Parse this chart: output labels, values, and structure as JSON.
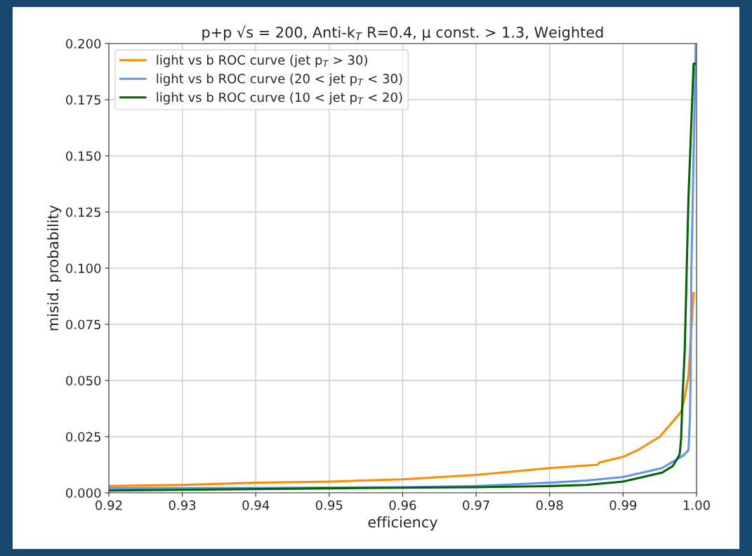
{
  "chart_data": {
    "type": "line",
    "title": "p+p √s = 200, Anti-k$_{T}$ R=0.4, μ const. > 1.3, Weighted",
    "xlabel": "efficiency",
    "ylabel": "misid. probability",
    "xlim": [
      0.92,
      1.0
    ],
    "xticks": [
      {
        "value": 0.92,
        "label": "0.92"
      },
      {
        "value": 0.93,
        "label": "0.93"
      },
      {
        "value": 0.94,
        "label": "0.94"
      },
      {
        "value": 0.95,
        "label": "0.95"
      },
      {
        "value": 0.96,
        "label": "0.96"
      },
      {
        "value": 0.97,
        "label": "0.97"
      },
      {
        "value": 0.98,
        "label": "0.98"
      },
      {
        "value": 0.99,
        "label": "0.99"
      },
      {
        "value": 1.0,
        "label": "1.00"
      }
    ],
    "ylim": [
      0.0,
      0.2
    ],
    "yticks": [
      {
        "value": 0.0,
        "label": "0.000"
      },
      {
        "value": 0.025,
        "label": "0.025"
      },
      {
        "value": 0.05,
        "label": "0.050"
      },
      {
        "value": 0.075,
        "label": "0.075"
      },
      {
        "value": 0.1,
        "label": "0.100"
      },
      {
        "value": 0.125,
        "label": "0.125"
      },
      {
        "value": 0.15,
        "label": "0.150"
      },
      {
        "value": 0.175,
        "label": "0.175"
      },
      {
        "value": 0.2,
        "label": "0.200"
      }
    ],
    "grid": true,
    "legend": "top left",
    "line_style": "solid",
    "series": [
      {
        "name": "light vs b ROC curve (jet p$_{T}$ > 30)",
        "color": "#ff8c00",
        "x": [
          0.92,
          0.93,
          0.94,
          0.95,
          0.96,
          0.97,
          0.98,
          0.9865,
          0.9868,
          0.99,
          0.992,
          0.995,
          0.9971,
          0.9979,
          0.9983,
          0.9989,
          0.9996
        ],
        "values": [
          0.003,
          0.0035,
          0.0045,
          0.005,
          0.006,
          0.008,
          0.011,
          0.0125,
          0.0135,
          0.016,
          0.019,
          0.025,
          0.033,
          0.036,
          0.041,
          0.052,
          0.089
        ]
      },
      {
        "name": "light vs b ROC curve (20 < jet p$_{T}$ < 30)",
        "color": "#6495ed",
        "x": [
          0.92,
          0.94,
          0.96,
          0.97,
          0.98,
          0.985,
          0.99,
          0.9953,
          0.9982,
          0.9989,
          0.9991,
          0.9992,
          0.9993,
          0.9999
        ],
        "values": [
          0.002,
          0.0022,
          0.0025,
          0.003,
          0.0045,
          0.0055,
          0.007,
          0.011,
          0.0166,
          0.019,
          0.033,
          0.054,
          0.1,
          0.2
        ]
      },
      {
        "name": "light vs b ROC curve (10 < jet p$_{T}$ < 20)",
        "color": "#006400",
        "x": [
          0.92,
          0.95,
          0.97,
          0.98,
          0.985,
          0.99,
          0.9953,
          0.9968,
          0.9977,
          0.9979,
          0.9981,
          0.9984,
          0.9989,
          0.9996,
          0.9999
        ],
        "values": [
          0.001,
          0.002,
          0.0025,
          0.003,
          0.0035,
          0.005,
          0.009,
          0.012,
          0.017,
          0.024,
          0.043,
          0.064,
          0.131,
          0.191,
          0.191
        ]
      }
    ]
  }
}
